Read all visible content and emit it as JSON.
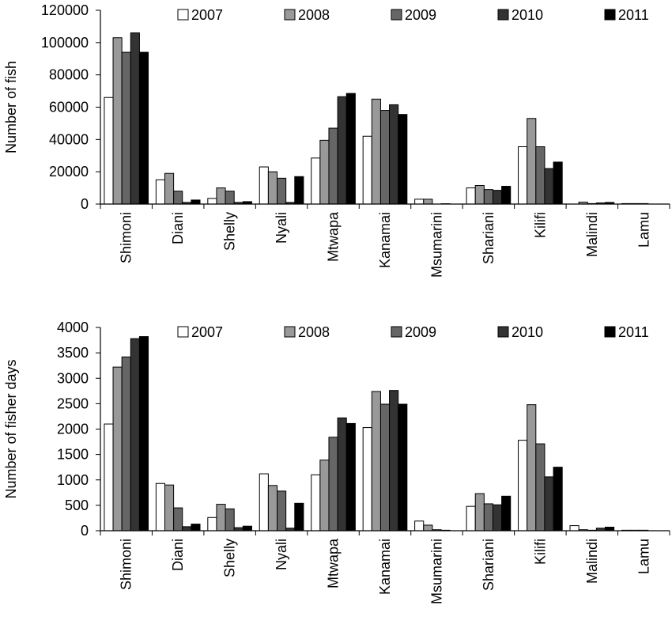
{
  "chart_data": [
    {
      "type": "bar",
      "y_label": "Number  of  fish",
      "categories": [
        "Shimoni",
        "Diani",
        "Shelly",
        "Nyali",
        "Mtwapa",
        "Kanamai",
        "Msumarini",
        "Shariani",
        "Kilifi",
        "Malindi",
        "Lamu"
      ],
      "series": [
        {
          "name": "2007",
          "color": "#ffffff",
          "values": [
            66000,
            15000,
            3500,
            23000,
            28500,
            42000,
            3000,
            10000,
            35500,
            0,
            300
          ]
        },
        {
          "name": "2008",
          "color": "#999999",
          "values": [
            103000,
            19000,
            10000,
            20000,
            39500,
            65000,
            3000,
            11500,
            53000,
            1200,
            300
          ]
        },
        {
          "name": "2009",
          "color": "#666666",
          "values": [
            94000,
            8000,
            8000,
            16000,
            47000,
            58000,
            0,
            9000,
            35500,
            300,
            300
          ]
        },
        {
          "name": "2010",
          "color": "#333333",
          "values": [
            106000,
            1000,
            1000,
            1000,
            66500,
            61500,
            200,
            8500,
            22000,
            700,
            0
          ]
        },
        {
          "name": "2011",
          "color": "#000000",
          "values": [
            94000,
            2500,
            1500,
            17000,
            68500,
            55500,
            0,
            11000,
            26000,
            1000,
            0
          ]
        }
      ],
      "ylim": [
        0,
        120000
      ],
      "yticks": [
        0,
        20000,
        40000,
        60000,
        80000,
        100000,
        120000
      ],
      "grid": false,
      "legend": "top"
    },
    {
      "type": "bar",
      "y_label": "Number  of  fisher days",
      "categories": [
        "Shimoni",
        "Diani",
        "Shelly",
        "Nyali",
        "Mtwapa",
        "Kanamai",
        "Msumarini",
        "Shariani",
        "Kilifi",
        "Malindi",
        "Lamu"
      ],
      "series": [
        {
          "name": "2007",
          "color": "#ffffff",
          "values": [
            2100,
            930,
            260,
            1120,
            1100,
            2030,
            190,
            480,
            1780,
            100,
            10
          ]
        },
        {
          "name": "2008",
          "color": "#999999",
          "values": [
            3220,
            900,
            520,
            890,
            1390,
            2740,
            110,
            730,
            2480,
            20,
            10
          ]
        },
        {
          "name": "2009",
          "color": "#666666",
          "values": [
            3420,
            450,
            430,
            780,
            1840,
            2490,
            20,
            530,
            1710,
            10,
            10
          ]
        },
        {
          "name": "2010",
          "color": "#333333",
          "values": [
            3780,
            80,
            60,
            50,
            2220,
            2760,
            10,
            510,
            1060,
            50,
            0
          ]
        },
        {
          "name": "2011",
          "color": "#000000",
          "values": [
            3820,
            130,
            90,
            540,
            2110,
            2490,
            0,
            680,
            1250,
            70,
            0
          ]
        }
      ],
      "ylim": [
        0,
        4000
      ],
      "yticks": [
        0,
        500,
        1000,
        1500,
        2000,
        2500,
        3000,
        3500,
        4000
      ],
      "grid": false,
      "legend": "top"
    }
  ]
}
